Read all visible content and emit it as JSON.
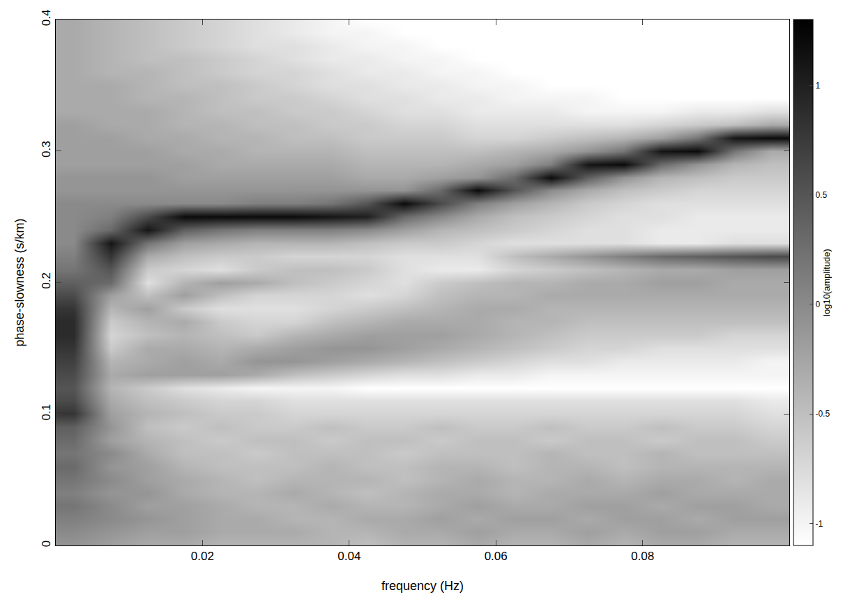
{
  "chart_data": {
    "type": "heatmap",
    "x_label": "frequency (Hz)",
    "y_label": "phase-slowness (s/km)",
    "xlim": [
      0,
      0.1
    ],
    "ylim": [
      0,
      0.4
    ],
    "xticks": [
      0.02,
      0.04,
      0.06,
      0.08
    ],
    "yticks": [
      0,
      0.1,
      0.2,
      0.3,
      0.4
    ],
    "colorbar": {
      "title": "log10(amplitude)",
      "range": [
        -1.1,
        1.3
      ],
      "ticks": [
        -1,
        -0.5,
        0,
        0.5,
        1
      ]
    },
    "x": [
      0.0025,
      0.0075,
      0.0125,
      0.0175,
      0.0225,
      0.0275,
      0.0325,
      0.0375,
      0.0425,
      0.0475,
      0.0525,
      0.0575,
      0.0625,
      0.0675,
      0.0725,
      0.0775,
      0.0825,
      0.0875,
      0.0925,
      0.0975
    ],
    "y": [
      0,
      0.01,
      0.02,
      0.03,
      0.04,
      0.05,
      0.06,
      0.07,
      0.08,
      0.09,
      0.1,
      0.11,
      0.12,
      0.13,
      0.14,
      0.15,
      0.16,
      0.17,
      0.18,
      0.19,
      0.2,
      0.21,
      0.22,
      0.23,
      0.24,
      0.25,
      0.26,
      0.27,
      0.28,
      0.29,
      0.3,
      0.31,
      0.32,
      0.33,
      0.34,
      0.35,
      0.36,
      0.37,
      0.38,
      0.39,
      0.4
    ],
    "z": [
      [
        -0.1,
        -0.2,
        -0.3,
        -0.3,
        -0.4,
        -0.4,
        -0.4,
        -0.4,
        -0.5,
        -0.4,
        -0.4,
        -0.3,
        -0.4,
        -0.4,
        -0.3,
        -0.4,
        -0.3,
        -0.3,
        -0.4,
        -0.4
      ],
      [
        0,
        -0.1,
        -0.2,
        -0.2,
        -0.3,
        -0.3,
        -0.3,
        -0.4,
        -0.4,
        -0.3,
        -0.3,
        -0.2,
        -0.3,
        -0.3,
        -0.2,
        -0.3,
        -0.2,
        -0.2,
        -0.3,
        -0.3
      ],
      [
        0.1,
        0,
        -0.1,
        -0.2,
        -0.3,
        -0.3,
        -0.4,
        -0.4,
        -0.3,
        -0.3,
        -0.2,
        -0.3,
        -0.2,
        -0.2,
        -0.3,
        -0.2,
        -0.2,
        -0.3,
        -0.2,
        -0.2
      ],
      [
        0.2,
        0,
        -0.2,
        -0.2,
        -0.3,
        -0.4,
        -0.4,
        -0.3,
        -0.4,
        -0.4,
        -0.3,
        -0.2,
        -0.3,
        -0.3,
        -0.2,
        -0.2,
        -0.3,
        -0.2,
        -0.2,
        -0.3
      ],
      [
        0.1,
        -0.1,
        -0.1,
        -0.3,
        -0.4,
        -0.4,
        -0.3,
        -0.4,
        -0.5,
        -0.4,
        -0.3,
        -0.3,
        -0.4,
        -0.3,
        -0.3,
        -0.3,
        -0.2,
        -0.3,
        -0.3,
        -0.3
      ],
      [
        0.2,
        0,
        -0.2,
        -0.3,
        -0.4,
        -0.5,
        -0.4,
        -0.4,
        -0.4,
        -0.5,
        -0.4,
        -0.3,
        -0.4,
        -0.4,
        -0.3,
        -0.4,
        -0.3,
        -0.3,
        -0.4,
        -0.3
      ],
      [
        0.3,
        -0.1,
        -0.2,
        -0.4,
        -0.5,
        -0.5,
        -0.5,
        -0.4,
        -0.5,
        -0.5,
        -0.4,
        -0.4,
        -0.5,
        -0.4,
        -0.4,
        -0.5,
        -0.4,
        -0.4,
        -0.4,
        -0.4
      ],
      [
        0.2,
        0,
        -0.3,
        -0.5,
        -0.5,
        -0.6,
        -0.5,
        -0.5,
        -0.5,
        -0.6,
        -0.5,
        -0.5,
        -0.5,
        -0.4,
        -0.5,
        -0.5,
        -0.4,
        -0.5,
        -0.5,
        -0.5
      ],
      [
        0.3,
        -0.2,
        -0.4,
        -0.5,
        -0.6,
        -0.5,
        -0.5,
        -0.6,
        -0.5,
        -0.5,
        -0.6,
        -0.5,
        -0.5,
        -0.6,
        -0.5,
        -0.5,
        -0.6,
        -0.5,
        -0.5,
        -0.6
      ],
      [
        0.4,
        -0.1,
        -0.5,
        -0.6,
        -0.5,
        -0.6,
        -0.6,
        -0.5,
        -0.6,
        -0.6,
        -0.5,
        -0.6,
        -0.6,
        -0.5,
        -0.6,
        -0.6,
        -0.5,
        -0.6,
        -0.6,
        -0.7
      ],
      [
        0.8,
        -0.2,
        -0.4,
        -0.5,
        -0.6,
        -0.6,
        -0.7,
        -0.7,
        -0.7,
        -0.7,
        -0.7,
        -0.7,
        -0.7,
        -0.7,
        -0.7,
        -0.7,
        -0.7,
        -0.7,
        -0.7,
        -0.8
      ],
      [
        0.6,
        -0.3,
        -0.5,
        -0.6,
        -0.7,
        -0.7,
        -0.8,
        -0.8,
        -0.8,
        -0.8,
        -0.8,
        -0.8,
        -0.8,
        -0.8,
        -0.8,
        -0.8,
        -0.8,
        -0.8,
        -0.8,
        -0.9
      ],
      [
        0.5,
        -0.4,
        -0.6,
        -0.8,
        -0.9,
        -1,
        -1,
        -1,
        -1.1,
        -1.1,
        -1.1,
        -1.1,
        -1.1,
        -1.1,
        -1.1,
        -1.1,
        -1.1,
        -1.1,
        -1.1,
        -1.1
      ],
      [
        0.6,
        -0.3,
        -0.2,
        -0.2,
        -0.2,
        -0.3,
        -0.5,
        -0.6,
        -0.7,
        -0.8,
        -0.8,
        -0.9,
        -0.9,
        -1,
        -1,
        -1,
        -1,
        -1,
        -1,
        -1
      ],
      [
        0.7,
        -0.4,
        -0.3,
        -0.2,
        -0.3,
        -0.1,
        -0.1,
        -0.2,
        -0.3,
        -0.4,
        -0.5,
        -0.6,
        -0.7,
        -0.8,
        -0.8,
        -0.9,
        -0.9,
        -0.9,
        -0.9,
        -1
      ],
      [
        0.8,
        -0.6,
        -0.3,
        -0.3,
        -0.4,
        -0.3,
        -0.2,
        -0.1,
        -0.1,
        -0.2,
        -0.3,
        -0.4,
        -0.5,
        -0.6,
        -0.7,
        -0.7,
        -0.8,
        -0.8,
        -0.8,
        -0.8
      ],
      [
        0.9,
        -0.7,
        -0.5,
        -0.4,
        -0.5,
        -0.6,
        -0.4,
        -0.3,
        -0.2,
        -0.2,
        -0.2,
        -0.3,
        -0.4,
        -0.5,
        -0.6,
        -0.6,
        -0.6,
        -0.6,
        -0.7,
        -0.7
      ],
      [
        0.9,
        -0.6,
        -0.4,
        -0.3,
        -0.6,
        -0.7,
        -0.7,
        -0.5,
        -0.4,
        -0.3,
        -0.3,
        -0.3,
        -0.4,
        -0.4,
        -0.5,
        -0.5,
        -0.5,
        -0.5,
        -0.5,
        -0.5
      ],
      [
        0.8,
        -0.4,
        -0.2,
        -0.6,
        -0.8,
        -0.8,
        -0.8,
        -0.7,
        -0.6,
        -0.5,
        -0.4,
        -0.3,
        -0.3,
        -0.4,
        -0.4,
        -0.4,
        -0.4,
        -0.4,
        -0.4,
        -0.4
      ],
      [
        0.6,
        -0.2,
        -0.5,
        -0.2,
        -0.5,
        -0.7,
        -0.7,
        -0.7,
        -0.8,
        -0.7,
        -0.5,
        -0.4,
        -0.4,
        -0.3,
        -0.3,
        -0.3,
        -0.3,
        -0.3,
        -0.3,
        -0.3
      ],
      [
        0.4,
        0.3,
        -0.8,
        -0.4,
        -0.2,
        -0.3,
        -0.5,
        -0.6,
        -0.7,
        -0.8,
        -0.6,
        -0.5,
        -0.4,
        -0.4,
        -0.3,
        -0.3,
        -0.2,
        -0.2,
        -0.3,
        -0.3
      ],
      [
        0.2,
        0.5,
        -0.6,
        -0.7,
        -0.8,
        -0.6,
        -0.5,
        -0.5,
        -0.6,
        -0.8,
        -0.9,
        -0.9,
        -0.7,
        -0.6,
        -0.5,
        -0.4,
        -0.3,
        -0.3,
        -0.2,
        -0.2
      ],
      [
        0.1,
        0.8,
        -0.3,
        -0.5,
        -0.6,
        -0.6,
        -0.7,
        -0.7,
        -0.7,
        -0.8,
        -0.8,
        -0.8,
        -0.5,
        -0.3,
        -0.1,
        0.1,
        0.3,
        0.4,
        0.5,
        0.6
      ],
      [
        0,
        1.1,
        0.2,
        -0.2,
        -0.3,
        -0.4,
        -0.4,
        -0.4,
        -0.5,
        -0.6,
        -0.6,
        -0.7,
        -0.8,
        -0.8,
        -0.8,
        -0.8,
        -0.9,
        -0.9,
        -0.8,
        -0.8
      ],
      [
        0,
        0.3,
        1.1,
        0.4,
        0.2,
        0.1,
        0.1,
        0.1,
        0,
        -0.2,
        -0.4,
        -0.5,
        -0.6,
        -0.7,
        -0.8,
        -0.8,
        -0.9,
        -0.9,
        -0.9,
        -0.9
      ],
      [
        0,
        0.1,
        0.6,
        1.2,
        1.2,
        1.2,
        1.2,
        1.1,
        1,
        0.3,
        0,
        -0.3,
        -0.5,
        -0.6,
        -0.7,
        -0.8,
        -0.8,
        -0.9,
        -0.9,
        -0.9
      ],
      [
        0,
        0,
        0,
        0,
        0,
        0.1,
        0.1,
        0.2,
        0.5,
        1.2,
        0.6,
        0.1,
        -0.2,
        -0.4,
        -0.6,
        -0.7,
        -0.8,
        -0.8,
        -0.8,
        -0.8
      ],
      [
        -0.1,
        -0.1,
        -0.1,
        -0.1,
        -0.1,
        -0.1,
        -0.1,
        -0.1,
        -0.1,
        -0.1,
        0.3,
        1.2,
        0.5,
        0,
        -0.3,
        -0.5,
        -0.6,
        -0.7,
        -0.7,
        -0.7
      ],
      [
        -0.1,
        -0.1,
        -0.1,
        -0.2,
        -0.2,
        -0.2,
        -0.2,
        -0.2,
        -0.3,
        -0.3,
        -0.2,
        -0.1,
        0.3,
        1.2,
        0.4,
        -0.1,
        -0.4,
        -0.5,
        -0.6,
        -0.6
      ],
      [
        -0.2,
        -0.2,
        -0.2,
        -0.2,
        -0.3,
        -0.3,
        -0.3,
        -0.3,
        -0.4,
        -0.4,
        -0.4,
        -0.3,
        -0.2,
        0.1,
        1.1,
        1.2,
        0.3,
        -0.1,
        -0.4,
        -0.5
      ],
      [
        -0.2,
        -0.2,
        -0.2,
        -0.3,
        -0.3,
        -0.4,
        -0.4,
        -0.4,
        -0.5,
        -0.5,
        -0.5,
        -0.5,
        -0.4,
        -0.3,
        -0.1,
        0.2,
        1.1,
        1.2,
        0.2,
        -0.3
      ],
      [
        -0.2,
        -0.2,
        -0.3,
        -0.3,
        -0.4,
        -0.4,
        -0.5,
        -0.5,
        -0.6,
        -0.6,
        -0.6,
        -0.7,
        -0.7,
        -0.6,
        -0.5,
        -0.4,
        -0.2,
        0.2,
        1.1,
        1.2
      ],
      [
        -0.2,
        -0.3,
        -0.3,
        -0.4,
        -0.4,
        -0.5,
        -0.5,
        -0.6,
        -0.6,
        -0.7,
        -0.7,
        -0.8,
        -0.8,
        -0.8,
        -0.8,
        -0.8,
        -0.7,
        -0.6,
        -0.5,
        -0.3
      ],
      [
        -0.3,
        -0.3,
        -0.3,
        -0.4,
        -0.5,
        -0.5,
        -0.6,
        -0.6,
        -0.7,
        -0.8,
        -0.8,
        -0.9,
        -0.9,
        -0.9,
        -1,
        -1,
        -1,
        -0.9,
        -0.9,
        -0.8
      ],
      [
        -0.3,
        -0.3,
        -0.4,
        -0.4,
        -0.5,
        -0.6,
        -0.6,
        -0.7,
        -0.8,
        -0.8,
        -0.9,
        -0.9,
        -1,
        -1,
        -1,
        -1.1,
        -1.1,
        -1.1,
        -1.1,
        -1.1
      ],
      [
        -0.3,
        -0.3,
        -0.4,
        -0.5,
        -0.5,
        -0.6,
        -0.7,
        -0.8,
        -0.8,
        -0.9,
        -0.9,
        -1,
        -1,
        -1.1,
        -1.1,
        -1.1,
        -1.1,
        -1.1,
        -1.1,
        -1.1
      ],
      [
        -0.3,
        -0.4,
        -0.4,
        -0.5,
        -0.6,
        -0.7,
        -0.7,
        -0.8,
        -0.9,
        -0.9,
        -1,
        -1,
        -1.1,
        -1.1,
        -1.1,
        -1.1,
        -1.1,
        -1.1,
        -1.1,
        -1.1
      ],
      [
        -0.3,
        -0.4,
        -0.5,
        -0.5,
        -0.6,
        -0.7,
        -0.8,
        -0.9,
        -0.9,
        -1,
        -1,
        -1.1,
        -1.1,
        -1.1,
        -1.1,
        -1.1,
        -1.1,
        -1.1,
        -1.1,
        -1.1
      ],
      [
        -0.3,
        -0.4,
        -0.5,
        -0.6,
        -0.7,
        -0.8,
        -0.8,
        -0.9,
        -1,
        -1,
        -1.1,
        -1.1,
        -1.1,
        -1.1,
        -1.1,
        -1.1,
        -1.1,
        -1.1,
        -1.1,
        -1.1
      ],
      [
        -0.3,
        -0.4,
        -0.5,
        -0.6,
        -0.7,
        -0.8,
        -0.9,
        -1,
        -1,
        -1.1,
        -1.1,
        -1.1,
        -1.1,
        -1.1,
        -1.1,
        -1.1,
        -1.1,
        -1.1,
        -1.1,
        -1.1
      ],
      [
        -0.3,
        -0.4,
        -0.5,
        -0.6,
        -0.7,
        -0.8,
        -0.9,
        -1,
        -1.1,
        -1.1,
        -1.1,
        -1.1,
        -1.1,
        -1.1,
        -1.1,
        -1.1,
        -1.1,
        -1.1,
        -1.1,
        -1.1
      ]
    ]
  }
}
